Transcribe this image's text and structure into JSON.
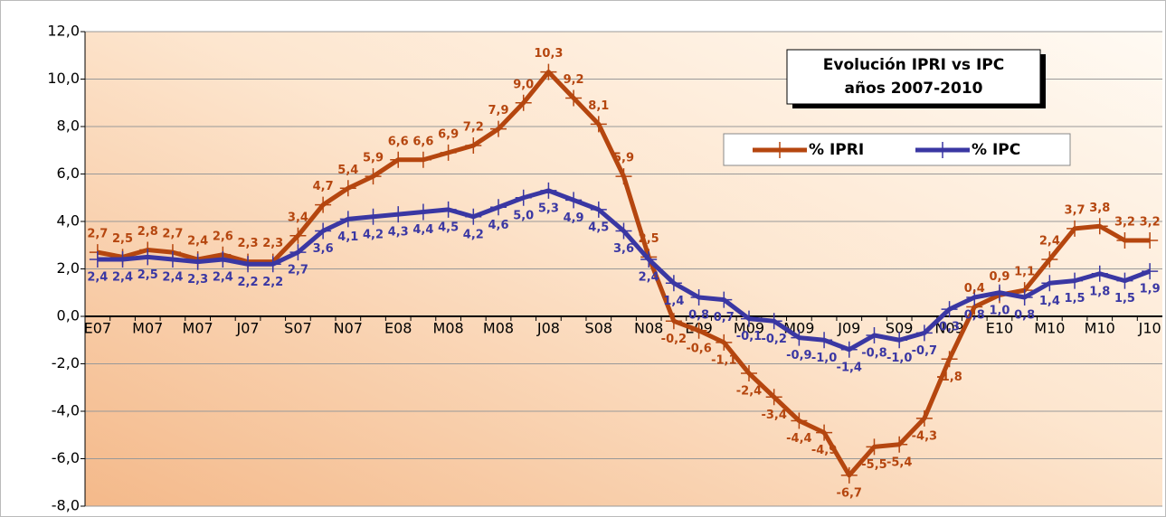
{
  "chart_data": {
    "type": "line",
    "title": "Evolución IPRI vs IPC",
    "subtitle": "años 2007-2010",
    "categories": [
      "E07",
      null,
      "M07",
      null,
      "M07",
      null,
      "J07",
      null,
      "S07",
      null,
      "N07",
      null,
      "E08",
      null,
      "M08",
      null,
      "M08",
      null,
      "J08",
      null,
      "S08",
      null,
      "N08",
      null,
      "E09",
      null,
      "M09",
      null,
      "M09",
      null,
      "J09",
      null,
      "S09",
      null,
      "N09",
      null,
      "E10",
      null,
      "M10",
      null,
      "M10",
      null,
      "J10"
    ],
    "series": [
      {
        "name": "% IPRI",
        "color": "#b5460f",
        "values": [
          2.7,
          2.5,
          2.8,
          2.7,
          2.4,
          2.6,
          2.3,
          2.3,
          3.4,
          4.7,
          5.4,
          5.9,
          6.6,
          6.6,
          6.9,
          7.2,
          7.9,
          9.0,
          10.3,
          9.2,
          8.1,
          5.9,
          2.5,
          -0.2,
          -0.6,
          -1.1,
          -2.4,
          -3.4,
          -4.4,
          -4.9,
          -6.7,
          -5.5,
          -5.4,
          -4.3,
          -1.8,
          0.4,
          0.9,
          1.1,
          2.4,
          3.7,
          3.8,
          3.2,
          3.2
        ],
        "value_labels": [
          "2,7",
          "2,5",
          "2,8",
          "2,7",
          "2,4",
          "2,6",
          "2,3",
          "2,3",
          "3,4",
          "4,7",
          "5,4",
          "5,9",
          "6,6",
          "6,6",
          "6,9",
          "7,2",
          "7,9",
          "9,0",
          "10,3",
          "9,2",
          "8,1",
          "5,9",
          "2,5",
          "-0,2",
          "-0,6",
          "-1,1",
          "-2,4",
          "-3,4",
          "-4,4",
          "-4,9",
          "-6,7",
          "-5,5",
          "-5,4",
          "-4,3",
          "-1,8",
          "0,4",
          "0,9",
          "1,1",
          "2,4",
          "3,7",
          "3,8",
          "3,2",
          "3,2"
        ]
      },
      {
        "name": "% IPC",
        "color": "#3a37a3",
        "values": [
          2.4,
          2.4,
          2.5,
          2.4,
          2.3,
          2.4,
          2.2,
          2.2,
          2.7,
          3.6,
          4.1,
          4.2,
          4.3,
          4.4,
          4.5,
          4.2,
          4.6,
          5.0,
          5.3,
          4.9,
          4.5,
          3.6,
          2.4,
          1.4,
          0.8,
          0.7,
          -0.1,
          -0.2,
          -0.9,
          -1.0,
          -1.4,
          -0.8,
          -1.0,
          -0.7,
          0.3,
          0.8,
          1.0,
          0.8,
          1.4,
          1.5,
          1.8,
          1.5,
          1.9
        ],
        "value_labels": [
          "2,4",
          "2,4",
          "2,5",
          "2,4",
          "2,3",
          "2,4",
          "2,2",
          "2,2",
          "2,7",
          "3,6",
          "4,1",
          "4,2",
          "4,3",
          "4,4",
          "4,5",
          "4,2",
          "4,6",
          "5,0",
          "5,3",
          "4,9",
          "4,5",
          "3,6",
          "2,4",
          "1,4",
          "0,8",
          "0,7",
          "-0,1",
          "-0,2",
          "-0,9",
          "-1,0",
          "-1,4",
          "-0,8",
          "-1,0",
          "-0,7",
          "0,3",
          "0,8",
          "1,0",
          "0,8",
          "1,4",
          "1,5",
          "1,8",
          "1,5",
          "1,9"
        ]
      }
    ],
    "ylim": [
      -8,
      12
    ],
    "yticks": [
      {
        "value": -8,
        "label": "-8,0"
      },
      {
        "value": -6,
        "label": "-6,0"
      },
      {
        "value": -4,
        "label": "-4,0"
      },
      {
        "value": -2,
        "label": "-2,0"
      },
      {
        "value": 0,
        "label": "0,0"
      },
      {
        "value": 2,
        "label": "2,0"
      },
      {
        "value": 4,
        "label": "4,0"
      },
      {
        "value": 6,
        "label": "6,0"
      },
      {
        "value": 8,
        "label": "8,0"
      },
      {
        "value": 10,
        "label": "10,0"
      },
      {
        "value": 12,
        "label": "12,0"
      }
    ],
    "grid": true
  }
}
